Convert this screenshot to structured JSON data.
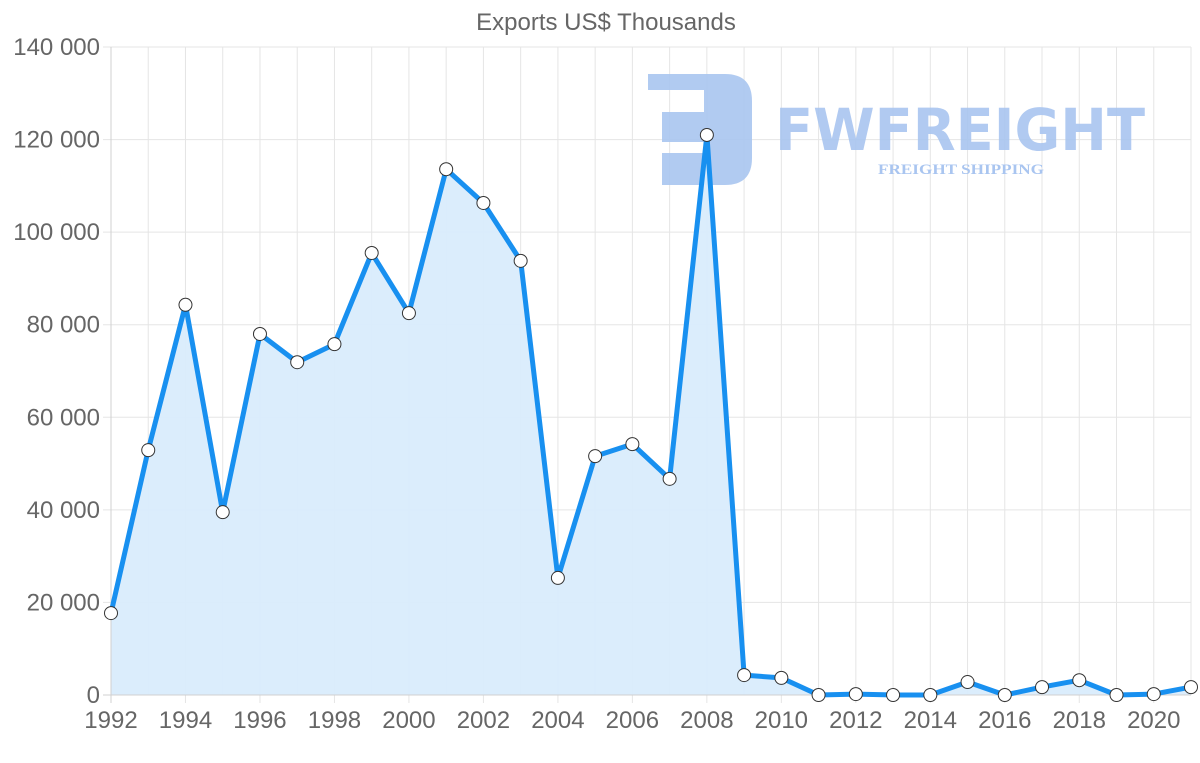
{
  "chart_data": {
    "type": "area",
    "title": "Exports US$ Thousands",
    "xlabel": "",
    "ylabel": "",
    "ylim": [
      0,
      140000
    ],
    "xlim": [
      1992,
      2021
    ],
    "grid": true,
    "legend": null,
    "y_ticks": [
      "0",
      "20 000",
      "40 000",
      "60 000",
      "80 000",
      "100 000",
      "120 000",
      "140 000"
    ],
    "y_tick_values": [
      0,
      20000,
      40000,
      60000,
      80000,
      100000,
      120000,
      140000
    ],
    "x_ticks": [
      "1992",
      "1994",
      "1996",
      "1998",
      "2000",
      "2002",
      "2004",
      "2006",
      "2008",
      "2010",
      "2012",
      "2014",
      "2016",
      "2018",
      "2020"
    ],
    "x": [
      1992,
      1993,
      1994,
      1995,
      1996,
      1997,
      1998,
      1999,
      2000,
      2001,
      2002,
      2003,
      2004,
      2005,
      2006,
      2007,
      2008,
      2009,
      2010,
      2011,
      2012,
      2013,
      2014,
      2015,
      2016,
      2017,
      2018,
      2019,
      2020,
      2021
    ],
    "series": [
      {
        "name": "Exports US$ Thousands",
        "color": "#1890f0",
        "fill": "#d9ecfc",
        "values": [
          17700,
          52900,
          84300,
          39500,
          78000,
          71900,
          75800,
          95500,
          82500,
          113600,
          106300,
          93800,
          25300,
          51600,
          54200,
          46700,
          121000,
          4300,
          3700,
          0,
          200,
          0,
          0,
          2800,
          0,
          1700,
          3200,
          0,
          200,
          1700
        ]
      }
    ]
  },
  "watermark": {
    "brand": "FWFREIGHT",
    "tagline": "FREIGHT SHIPPING",
    "color": "#a9c5f0"
  }
}
